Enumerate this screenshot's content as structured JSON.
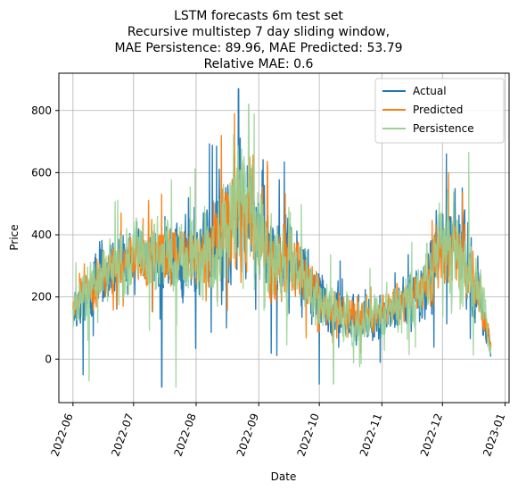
{
  "chart_data": {
    "type": "line",
    "title_lines": [
      "LSTM forecasts 6m test set",
      "Recursive multistep 7 day sliding window,",
      "MAE Persistence: 89.96, MAE Predicted: 53.79",
      "Relative MAE: 0.6"
    ],
    "xlabel": "Date",
    "ylabel": "Price",
    "x_range": [
      "2022-05-25",
      "2023-01-03"
    ],
    "ylim": [
      -140,
      920
    ],
    "grid": true,
    "legend_position": "top-right",
    "x_ticks": [
      "2022-06",
      "2022-07",
      "2022-08",
      "2022-09",
      "2022-10",
      "2022-11",
      "2022-12",
      "2023-01"
    ],
    "y_ticks": [
      0,
      200,
      400,
      600,
      800
    ],
    "series": [
      {
        "name": "Actual",
        "color": "#1f77b4",
        "x_start": "2022-06-01",
        "x_end": "2022-12-25",
        "profile_dates": [
          "2022-06-01",
          "2022-06-15",
          "2022-07-01",
          "2022-07-15",
          "2022-08-01",
          "2022-08-15",
          "2022-08-25",
          "2022-09-05",
          "2022-09-20",
          "2022-10-05",
          "2022-10-20",
          "2022-11-05",
          "2022-11-20",
          "2022-12-01",
          "2022-12-10",
          "2022-12-20",
          "2022-12-25"
        ],
        "profile_center": [
          170,
          260,
          330,
          320,
          330,
          420,
          520,
          360,
          290,
          160,
          120,
          150,
          210,
          380,
          350,
          200,
          20
        ],
        "profile_amplitude": [
          60,
          90,
          100,
          110,
          130,
          170,
          200,
          160,
          120,
          80,
          70,
          70,
          90,
          140,
          130,
          90,
          30
        ],
        "extremes": [
          {
            "x": "2022-06-06",
            "y": -50
          },
          {
            "x": "2022-07-15",
            "y": -90
          },
          {
            "x": "2022-08-22",
            "y": 870
          },
          {
            "x": "2022-10-01",
            "y": -80
          },
          {
            "x": "2022-12-03",
            "y": 660
          }
        ]
      },
      {
        "name": "Predicted",
        "color": "#ff7f0e",
        "x_start": "2022-06-01",
        "x_end": "2022-12-25",
        "profile_dates": [
          "2022-06-01",
          "2022-06-15",
          "2022-07-01",
          "2022-07-15",
          "2022-08-01",
          "2022-08-15",
          "2022-08-25",
          "2022-09-05",
          "2022-09-20",
          "2022-10-05",
          "2022-10-20",
          "2022-11-05",
          "2022-11-20",
          "2022-12-01",
          "2022-12-10",
          "2022-12-20",
          "2022-12-25"
        ],
        "profile_center": [
          180,
          270,
          330,
          330,
          340,
          420,
          500,
          360,
          290,
          170,
          130,
          160,
          210,
          370,
          330,
          190,
          30
        ],
        "profile_amplitude": [
          40,
          70,
          80,
          90,
          100,
          140,
          170,
          130,
          100,
          60,
          50,
          50,
          70,
          110,
          100,
          70,
          20
        ],
        "extremes": [
          {
            "x": "2022-08-20",
            "y": 790
          },
          {
            "x": "2022-12-04",
            "y": 600
          }
        ]
      },
      {
        "name": "Persistence",
        "color": "#98d294",
        "x_start": "2022-06-01",
        "x_end": "2022-12-25",
        "profile_dates": [
          "2022-06-01",
          "2022-06-15",
          "2022-07-01",
          "2022-07-15",
          "2022-08-01",
          "2022-08-15",
          "2022-08-25",
          "2022-09-05",
          "2022-09-20",
          "2022-10-05",
          "2022-10-20",
          "2022-11-05",
          "2022-11-20",
          "2022-12-01",
          "2022-12-10",
          "2022-12-20",
          "2022-12-25"
        ],
        "profile_center": [
          175,
          265,
          330,
          325,
          335,
          420,
          510,
          365,
          295,
          165,
          125,
          155,
          215,
          385,
          360,
          210,
          30
        ],
        "profile_amplitude": [
          60,
          90,
          100,
          110,
          130,
          170,
          200,
          160,
          120,
          80,
          70,
          70,
          90,
          140,
          140,
          100,
          30
        ],
        "extremes": [
          {
            "x": "2022-06-09",
            "y": -70
          },
          {
            "x": "2022-07-22",
            "y": -90
          },
          {
            "x": "2022-08-27",
            "y": 820
          },
          {
            "x": "2022-10-08",
            "y": -80
          },
          {
            "x": "2022-12-14",
            "y": 665
          }
        ]
      }
    ]
  }
}
